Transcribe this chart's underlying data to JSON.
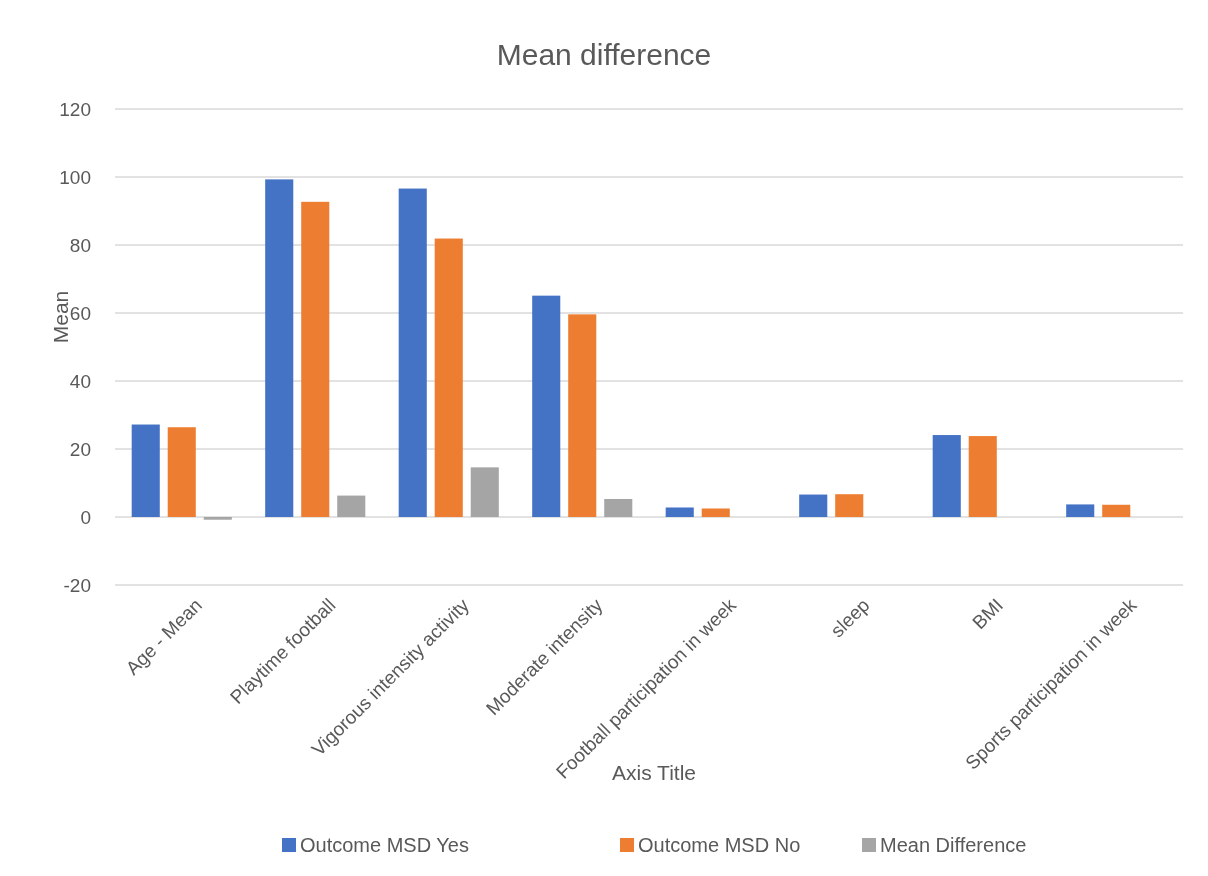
{
  "chart_data": {
    "type": "bar",
    "title": "Mean difference",
    "xlabel": "Axis Title",
    "ylabel": "Mean",
    "categories": [
      "Age - Mean",
      "Playtime football",
      "Vigorous intensity activity",
      "Moderate intensity",
      "Football participation in week",
      "sleep",
      "BMI",
      "Sports participation in week"
    ],
    "series": [
      {
        "name": "Outcome MSD Yes",
        "color": "#4472c4",
        "values": [
          27.2,
          99.3,
          96.6,
          65.1,
          2.8,
          6.6,
          24.1,
          3.7
        ]
      },
      {
        "name": "Outcome MSD No",
        "color": "#ed7d31",
        "values": [
          26.4,
          92.7,
          81.9,
          59.6,
          2.5,
          6.7,
          23.8,
          3.6
        ]
      },
      {
        "name": "Mean Difference",
        "color": "#a5a5a5",
        "values": [
          -0.8,
          6.3,
          14.6,
          5.3,
          null,
          0,
          null,
          null
        ]
      }
    ],
    "ylim": [
      -20,
      120
    ],
    "yticks": [
      -20,
      0,
      20,
      40,
      60,
      80,
      100,
      120
    ],
    "grid": "y",
    "legend": "bottom"
  }
}
